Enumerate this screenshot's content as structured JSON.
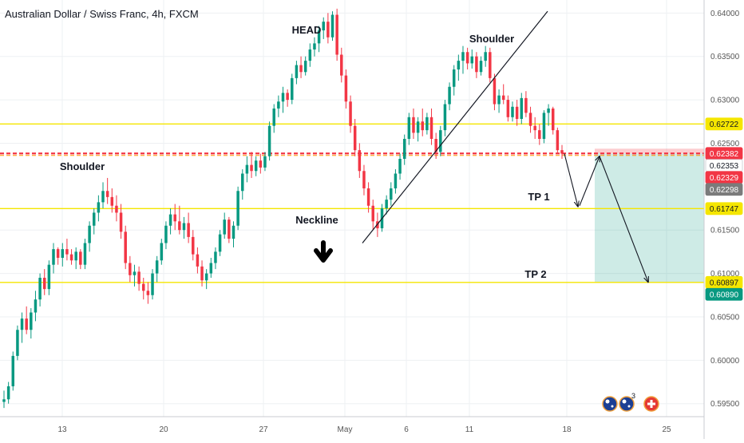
{
  "chart_data": {
    "type": "candlestick",
    "title": "Australian Dollar / Swiss Franc, 4h, FXCM",
    "x_tick_labels": [
      "13",
      "20",
      "27",
      "May",
      "6",
      "11",
      "18",
      "25"
    ],
    "y_tick_labels": [
      "0.64000",
      "0.63500",
      "0.63000",
      "0.62500",
      "0.61500",
      "0.61000",
      "0.60500",
      "0.60000",
      "0.59500"
    ],
    "ylim": [
      0.5935,
      0.6415
    ],
    "grid": true,
    "horizontal_levels": [
      {
        "label": "0.62722",
        "price": 0.62722,
        "color": "#f5e600"
      },
      {
        "label": "0.62382",
        "price": 0.62382,
        "color": "#f23645"
      },
      {
        "label": "0.61747",
        "price": 0.61747,
        "color": "#f5e600"
      },
      {
        "label": "0.60897",
        "price": 0.60897,
        "color": "#f5e600"
      }
    ],
    "price_badges": [
      {
        "label": "0.62722",
        "price": 0.62722,
        "color": "#f5e600",
        "text_color": "#131722"
      },
      {
        "label": "0.62382",
        "price": 0.62382,
        "color": "#f23645",
        "text_color": "#ffffff"
      },
      {
        "label": "0.62353",
        "price": 0.62353,
        "color": "#ffffff",
        "text_color": "#131722"
      },
      {
        "label": "0.62329",
        "price": 0.62329,
        "color": "#f23645",
        "text_color": "#ffffff"
      },
      {
        "label": "0.62298",
        "price": 0.62298,
        "color": "#7b7b7b",
        "text_color": "#ffffff"
      },
      {
        "label": "0.61747",
        "price": 0.61747,
        "color": "#f5e600",
        "text_color": "#131722"
      },
      {
        "label": "0.60897",
        "price": 0.60897,
        "color": "#f5e600",
        "text_color": "#131722"
      },
      {
        "label": "0.60890",
        "price": 0.6089,
        "color": "#089981",
        "text_color": "#ffffff"
      }
    ],
    "annotations": [
      "HEAD",
      "Shoulder",
      "Shoulder",
      "Neckline",
      "TP 1",
      "TP 2"
    ],
    "trade_zone": {
      "entry": 0.62382,
      "stop": 0.62353,
      "target": 0.60897
    },
    "candles_ohlc": [
      [
        0.5952,
        0.5965,
        0.5945,
        0.5955
      ],
      [
        0.5955,
        0.5975,
        0.595,
        0.597
      ],
      [
        0.597,
        0.601,
        0.5965,
        0.6005
      ],
      [
        0.6005,
        0.604,
        0.6,
        0.6035
      ],
      [
        0.6035,
        0.6055,
        0.602,
        0.6048
      ],
      [
        0.6048,
        0.6062,
        0.603,
        0.6035
      ],
      [
        0.6035,
        0.606,
        0.6025,
        0.6055
      ],
      [
        0.6055,
        0.608,
        0.6045,
        0.607
      ],
      [
        0.607,
        0.61,
        0.6062,
        0.6095
      ],
      [
        0.6095,
        0.6105,
        0.6075,
        0.6082
      ],
      [
        0.6082,
        0.6115,
        0.6075,
        0.611
      ],
      [
        0.611,
        0.6135,
        0.61,
        0.6128
      ],
      [
        0.6128,
        0.613,
        0.611,
        0.6118
      ],
      [
        0.6118,
        0.6135,
        0.6108,
        0.6128
      ],
      [
        0.6128,
        0.614,
        0.6115,
        0.6122
      ],
      [
        0.6122,
        0.6128,
        0.611,
        0.6115
      ],
      [
        0.6115,
        0.613,
        0.6105,
        0.6125
      ],
      [
        0.6125,
        0.6128,
        0.6105,
        0.611
      ],
      [
        0.611,
        0.614,
        0.6105,
        0.6135
      ],
      [
        0.6135,
        0.616,
        0.6125,
        0.6155
      ],
      [
        0.6155,
        0.6175,
        0.6145,
        0.617
      ],
      [
        0.617,
        0.619,
        0.616,
        0.6182
      ],
      [
        0.6182,
        0.6205,
        0.6175,
        0.6195
      ],
      [
        0.6195,
        0.621,
        0.618,
        0.6188
      ],
      [
        0.6188,
        0.6198,
        0.617,
        0.6178
      ],
      [
        0.6178,
        0.619,
        0.616,
        0.617
      ],
      [
        0.617,
        0.618,
        0.614,
        0.6148
      ],
      [
        0.6148,
        0.6155,
        0.6105,
        0.6112
      ],
      [
        0.6112,
        0.612,
        0.609,
        0.6098
      ],
      [
        0.6098,
        0.611,
        0.6085,
        0.6102
      ],
      [
        0.6102,
        0.6108,
        0.608,
        0.6088
      ],
      [
        0.6088,
        0.6095,
        0.607,
        0.608
      ],
      [
        0.608,
        0.609,
        0.6065,
        0.6075
      ],
      [
        0.6075,
        0.6105,
        0.607,
        0.61
      ],
      [
        0.61,
        0.612,
        0.609,
        0.6115
      ],
      [
        0.6115,
        0.614,
        0.611,
        0.6135
      ],
      [
        0.6135,
        0.616,
        0.6128,
        0.6155
      ],
      [
        0.6155,
        0.6175,
        0.6145,
        0.6168
      ],
      [
        0.6168,
        0.618,
        0.615,
        0.616
      ],
      [
        0.616,
        0.6178,
        0.6145,
        0.615
      ],
      [
        0.615,
        0.6165,
        0.614,
        0.6158
      ],
      [
        0.6158,
        0.617,
        0.6135,
        0.6142
      ],
      [
        0.6142,
        0.615,
        0.6115,
        0.6122
      ],
      [
        0.6122,
        0.613,
        0.61,
        0.6108
      ],
      [
        0.6108,
        0.6115,
        0.6085,
        0.6092
      ],
      [
        0.6092,
        0.6105,
        0.6082,
        0.61
      ],
      [
        0.61,
        0.6118,
        0.6095,
        0.6112
      ],
      [
        0.6112,
        0.613,
        0.6105,
        0.6125
      ],
      [
        0.6125,
        0.615,
        0.612,
        0.6145
      ],
      [
        0.6145,
        0.617,
        0.614,
        0.6162
      ],
      [
        0.6162,
        0.6165,
        0.6135,
        0.614
      ],
      [
        0.614,
        0.616,
        0.613,
        0.6155
      ],
      [
        0.6155,
        0.62,
        0.615,
        0.6195
      ],
      [
        0.6195,
        0.622,
        0.6185,
        0.6215
      ],
      [
        0.6215,
        0.6235,
        0.6205,
        0.6225
      ],
      [
        0.6225,
        0.624,
        0.621,
        0.6218
      ],
      [
        0.6218,
        0.6235,
        0.6212,
        0.623
      ],
      [
        0.623,
        0.6238,
        0.6215,
        0.6222
      ],
      [
        0.6222,
        0.624,
        0.6218,
        0.6235
      ],
      [
        0.6235,
        0.6275,
        0.623,
        0.627
      ],
      [
        0.627,
        0.6295,
        0.6262,
        0.629
      ],
      [
        0.629,
        0.6305,
        0.628,
        0.6298
      ],
      [
        0.6298,
        0.6315,
        0.6285,
        0.6308
      ],
      [
        0.6308,
        0.6312,
        0.6292,
        0.63
      ],
      [
        0.63,
        0.633,
        0.6295,
        0.6325
      ],
      [
        0.6325,
        0.6345,
        0.6318,
        0.634
      ],
      [
        0.634,
        0.635,
        0.6325,
        0.6332
      ],
      [
        0.6332,
        0.635,
        0.6328,
        0.6345
      ],
      [
        0.6345,
        0.6365,
        0.6338,
        0.6358
      ],
      [
        0.6358,
        0.6372,
        0.635,
        0.6365
      ],
      [
        0.6365,
        0.6385,
        0.6355,
        0.638
      ],
      [
        0.638,
        0.6395,
        0.637,
        0.639
      ],
      [
        0.639,
        0.64,
        0.6365,
        0.6372
      ],
      [
        0.6372,
        0.6402,
        0.6368,
        0.6398
      ],
      [
        0.6398,
        0.6405,
        0.6345,
        0.6352
      ],
      [
        0.6352,
        0.636,
        0.632,
        0.6328
      ],
      [
        0.6328,
        0.6335,
        0.629,
        0.6298
      ],
      [
        0.6298,
        0.6305,
        0.6262,
        0.627
      ],
      [
        0.627,
        0.6278,
        0.6235,
        0.6242
      ],
      [
        0.6242,
        0.625,
        0.621,
        0.6218
      ],
      [
        0.6218,
        0.6225,
        0.619,
        0.6198
      ],
      [
        0.6198,
        0.6205,
        0.617,
        0.6178
      ],
      [
        0.6178,
        0.6185,
        0.615,
        0.616
      ],
      [
        0.616,
        0.617,
        0.6142,
        0.6152
      ],
      [
        0.6152,
        0.618,
        0.6148,
        0.6175
      ],
      [
        0.6175,
        0.619,
        0.6168,
        0.6185
      ],
      [
        0.6185,
        0.6205,
        0.6178,
        0.6198
      ],
      [
        0.6198,
        0.622,
        0.6192,
        0.6215
      ],
      [
        0.6215,
        0.6238,
        0.6208,
        0.6232
      ],
      [
        0.6232,
        0.626,
        0.6225,
        0.6255
      ],
      [
        0.6255,
        0.6285,
        0.6248,
        0.628
      ],
      [
        0.628,
        0.629,
        0.6255,
        0.6262
      ],
      [
        0.6262,
        0.628,
        0.6252,
        0.6275
      ],
      [
        0.6275,
        0.629,
        0.6258,
        0.6265
      ],
      [
        0.6265,
        0.6285,
        0.626,
        0.628
      ],
      [
        0.628,
        0.629,
        0.6248,
        0.6255
      ],
      [
        0.6255,
        0.6262,
        0.6232,
        0.624
      ],
      [
        0.624,
        0.627,
        0.6235,
        0.6265
      ],
      [
        0.6265,
        0.63,
        0.6258,
        0.6295
      ],
      [
        0.6295,
        0.632,
        0.6288,
        0.6315
      ],
      [
        0.6315,
        0.634,
        0.6305,
        0.6335
      ],
      [
        0.6335,
        0.6352,
        0.6322,
        0.6345
      ],
      [
        0.6345,
        0.6362,
        0.633,
        0.6355
      ],
      [
        0.6355,
        0.636,
        0.6335,
        0.6342
      ],
      [
        0.6342,
        0.6358,
        0.6336,
        0.635
      ],
      [
        0.635,
        0.6355,
        0.6325,
        0.6332
      ],
      [
        0.6332,
        0.635,
        0.6328,
        0.6345
      ],
      [
        0.6345,
        0.6362,
        0.6338,
        0.6355
      ],
      [
        0.6355,
        0.636,
        0.632,
        0.6325
      ],
      [
        0.6325,
        0.633,
        0.6288,
        0.6295
      ],
      [
        0.6295,
        0.6312,
        0.6285,
        0.6305
      ],
      [
        0.6305,
        0.6318,
        0.6295,
        0.63
      ],
      [
        0.63,
        0.6305,
        0.6275,
        0.628
      ],
      [
        0.628,
        0.6298,
        0.6275,
        0.6292
      ],
      [
        0.6292,
        0.63,
        0.627,
        0.6278
      ],
      [
        0.6278,
        0.6308,
        0.6272,
        0.6302
      ],
      [
        0.6302,
        0.631,
        0.628,
        0.6285
      ],
      [
        0.6285,
        0.6292,
        0.6262,
        0.627
      ],
      [
        0.627,
        0.628,
        0.6255,
        0.6265
      ],
      [
        0.6265,
        0.6272,
        0.6248,
        0.6255
      ],
      [
        0.6255,
        0.6288,
        0.625,
        0.6285
      ],
      [
        0.6285,
        0.6295,
        0.627,
        0.629
      ],
      [
        0.629,
        0.6292,
        0.626,
        0.6265
      ],
      [
        0.6265,
        0.6268,
        0.6238,
        0.6242
      ],
      [
        0.6242,
        0.6248,
        0.6232,
        0.6238
      ]
    ]
  }
}
